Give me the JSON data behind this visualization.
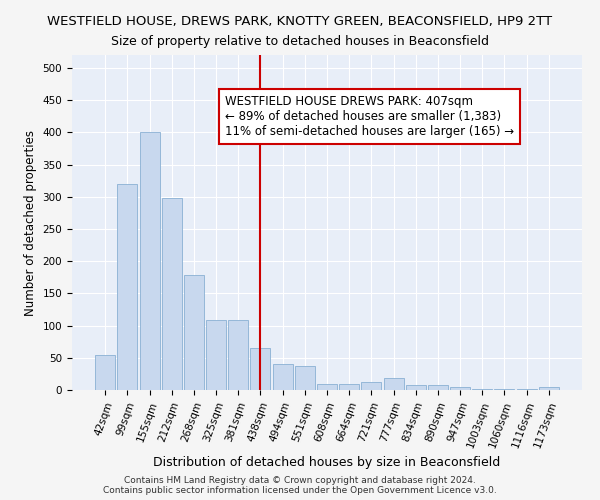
{
  "title": "WESTFIELD HOUSE, DREWS PARK, KNOTTY GREEN, BEACONSFIELD, HP9 2TT",
  "subtitle": "Size of property relative to detached houses in Beaconsfield",
  "xlabel": "Distribution of detached houses by size in Beaconsfield",
  "ylabel": "Number of detached properties",
  "footer1": "Contains HM Land Registry data © Crown copyright and database right 2024.",
  "footer2": "Contains public sector information licensed under the Open Government Licence v3.0.",
  "categories": [
    "42sqm",
    "99sqm",
    "155sqm",
    "212sqm",
    "268sqm",
    "325sqm",
    "381sqm",
    "438sqm",
    "494sqm",
    "551sqm",
    "608sqm",
    "664sqm",
    "721sqm",
    "777sqm",
    "834sqm",
    "890sqm",
    "947sqm",
    "1003sqm",
    "1060sqm",
    "1116sqm",
    "1173sqm"
  ],
  "values": [
    55,
    320,
    400,
    298,
    178,
    108,
    108,
    65,
    40,
    38,
    10,
    10,
    13,
    18,
    8,
    8,
    5,
    2,
    2,
    2,
    5
  ],
  "bar_color": "#c8d8ee",
  "bar_edge_color": "#8ab0d4",
  "vline_position": 7.0,
  "vline_color": "#cc0000",
  "annotation_title": "WESTFIELD HOUSE DREWS PARK: 407sqm",
  "annotation_line1": "← 89% of detached houses are smaller (1,383)",
  "annotation_line2": "11% of semi-detached houses are larger (165) →",
  "annotation_box_facecolor": "#ffffff",
  "annotation_box_edgecolor": "#cc0000",
  "ylim": [
    0,
    520
  ],
  "yticks": [
    0,
    50,
    100,
    150,
    200,
    250,
    300,
    350,
    400,
    450,
    500
  ],
  "fig_facecolor": "#f5f5f5",
  "plot_facecolor": "#e8eef8",
  "grid_color": "#ffffff",
  "title_fontsize": 9.5,
  "subtitle_fontsize": 9,
  "xlabel_fontsize": 9,
  "ylabel_fontsize": 8.5,
  "tick_fontsize": 7.5,
  "annotation_fontsize": 8.5,
  "footer_fontsize": 6.5
}
